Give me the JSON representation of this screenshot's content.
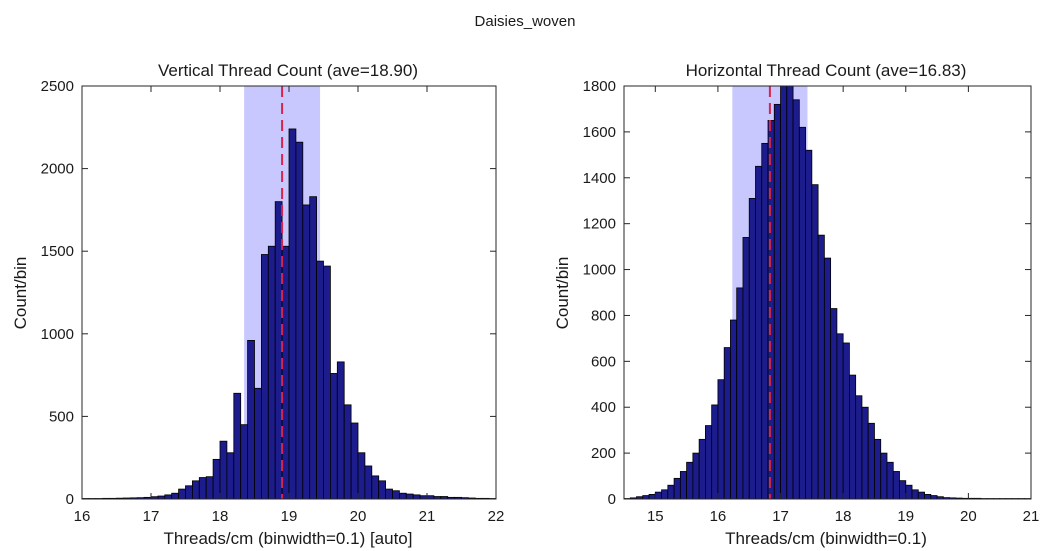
{
  "figure": {
    "suptitle": "Daisies_woven"
  },
  "chart_data": [
    {
      "type": "bar",
      "title": "Vertical Thread Count (ave=18.90)",
      "xlabel": "Threads/cm (binwidth=0.1) [auto]",
      "ylabel": "Count/bin",
      "xlim": [
        16,
        22
      ],
      "ylim": [
        0,
        2500
      ],
      "xticks": [
        "16",
        "17",
        "18",
        "19",
        "20",
        "21",
        "22"
      ],
      "yticks": [
        "0",
        "500",
        "1000",
        "1500",
        "2000",
        "2500"
      ],
      "binwidth": 0.1,
      "bin_start": 16.0,
      "mean": 18.9,
      "band": [
        18.35,
        19.45
      ],
      "bar_color": "#1c1c8c",
      "band_color": "#c8c8ff",
      "mean_line_color": "#d6244a",
      "values": [
        3,
        3,
        3,
        4,
        4,
        5,
        6,
        7,
        8,
        10,
        14,
        18,
        25,
        35,
        60,
        80,
        110,
        130,
        135,
        240,
        350,
        280,
        640,
        450,
        960,
        670,
        1480,
        1530,
        1800,
        1530,
        2240,
        2160,
        1780,
        1830,
        1440,
        1410,
        760,
        830,
        570,
        460,
        280,
        200,
        140,
        110,
        60,
        50,
        35,
        30,
        25,
        20,
        20,
        15,
        15,
        10,
        10,
        8,
        6,
        4,
        4,
        3
      ]
    },
    {
      "type": "bar",
      "title": "Horizontal Thread Count (ave=16.83)",
      "xlabel": "Threads/cm (binwidth=0.1)",
      "ylabel": "Count/bin",
      "xlim": [
        14.5,
        21
      ],
      "ylim": [
        0,
        1800
      ],
      "xticks": [
        "15",
        "16",
        "17",
        "18",
        "19",
        "20",
        "21"
      ],
      "xtick_values": [
        15,
        16,
        17,
        18,
        19,
        20,
        21
      ],
      "yticks": [
        "0",
        "200",
        "400",
        "600",
        "800",
        "1000",
        "1200",
        "1400",
        "1600",
        "1800"
      ],
      "binwidth": 0.1,
      "bin_start": 14.5,
      "mean": 16.83,
      "band": [
        16.23,
        17.43
      ],
      "bar_color": "#1c1c8c",
      "band_color": "#c8c8ff",
      "mean_line_color": "#d6244a",
      "values": [
        2,
        5,
        10,
        15,
        20,
        30,
        40,
        60,
        90,
        120,
        160,
        200,
        260,
        320,
        410,
        520,
        660,
        780,
        920,
        1140,
        1310,
        1450,
        1550,
        1650,
        1720,
        1810,
        1860,
        1740,
        1620,
        1520,
        1370,
        1150,
        1050,
        830,
        720,
        680,
        540,
        450,
        400,
        330,
        260,
        200,
        160,
        120,
        80,
        60,
        40,
        30,
        20,
        15,
        10,
        6,
        5,
        4,
        3,
        3,
        3,
        2,
        2,
        2,
        2,
        2,
        2,
        2,
        2
      ]
    }
  ]
}
